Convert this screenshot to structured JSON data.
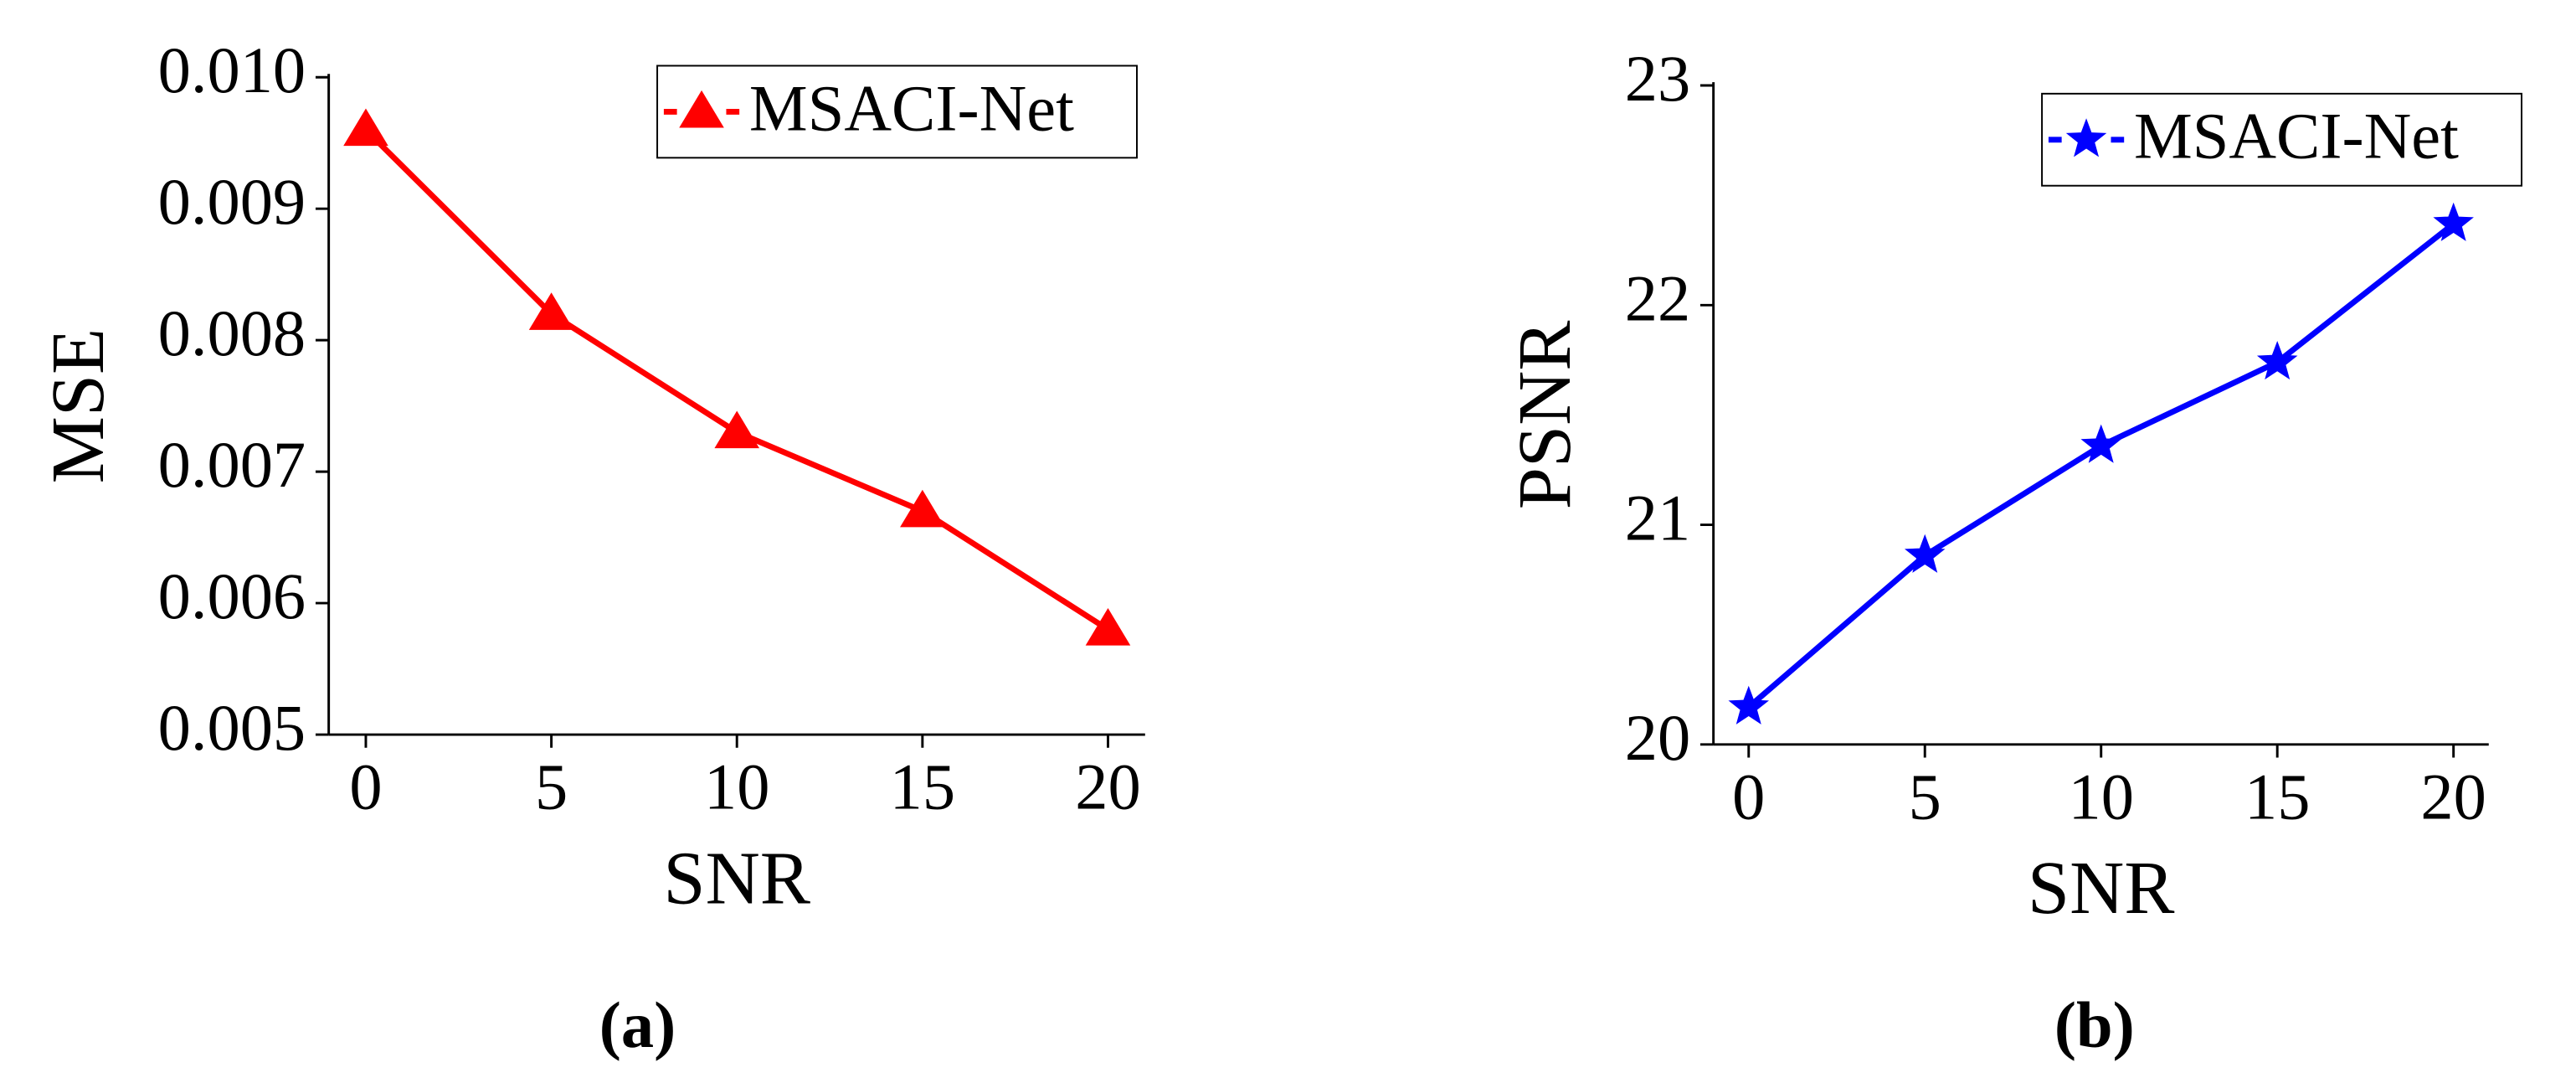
{
  "chart_data": [
    {
      "type": "line",
      "x": [
        0,
        5,
        10,
        15,
        20
      ],
      "xlim": [
        -1,
        21
      ],
      "xticks": [
        0,
        5,
        10,
        15,
        20
      ],
      "ylim": [
        0.005,
        0.01
      ],
      "yticks": [
        0.005,
        0.006,
        0.007,
        0.008,
        0.009,
        {
          "value": 0.01,
          "label": "0.010"
        }
      ],
      "xlabel": "SNR",
      "ylabel": "MSE",
      "caption": "(a)",
      "series": [
        {
          "name": "MSACI-Net",
          "color": "#ff0000",
          "marker": "triangle",
          "values": [
            0.0096,
            0.0082,
            0.0073,
            0.0067,
            0.0058
          ]
        }
      ]
    },
    {
      "type": "line",
      "x": [
        0,
        5,
        10,
        15,
        20
      ],
      "xlim": [
        -1,
        21
      ],
      "xticks": [
        0,
        5,
        10,
        15,
        20
      ],
      "ylim": [
        20,
        23
      ],
      "yticks": [
        20,
        21,
        22,
        23
      ],
      "xlabel": "SNR",
      "ylabel": "PSNR",
      "caption": "(b)",
      "series": [
        {
          "name": "MSACI-Net",
          "color": "#0000ff",
          "marker": "star",
          "values": [
            20.17,
            20.86,
            21.36,
            21.74,
            22.37
          ]
        }
      ]
    }
  ]
}
